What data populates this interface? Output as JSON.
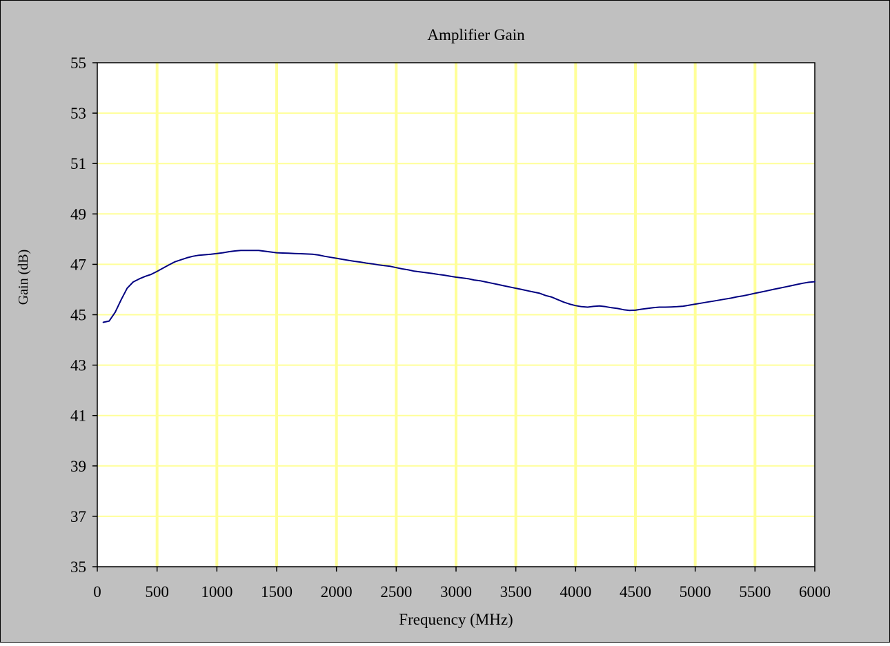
{
  "chart_data": {
    "type": "line",
    "title": "Amplifier Gain",
    "xlabel": "Frequency (MHz)",
    "ylabel": "Gain (dB)",
    "xlim": [
      0,
      6000
    ],
    "ylim": [
      35,
      55
    ],
    "xticks": [
      0,
      500,
      1000,
      1500,
      2000,
      2500,
      3000,
      3500,
      4000,
      4500,
      5000,
      5500,
      6000
    ],
    "yticks": [
      35,
      37,
      39,
      41,
      43,
      45,
      47,
      49,
      51,
      53,
      55
    ],
    "grid": true,
    "legend": "none",
    "colors": {
      "background": "#c0c0c0",
      "plot_area": "#ffffff",
      "grid": "#ffff99",
      "line": "#000080",
      "axis": "#000000"
    },
    "series": [
      {
        "x": [
          50,
          100,
          150,
          200,
          250,
          300,
          350,
          400,
          450,
          500,
          550,
          600,
          650,
          700,
          750,
          800,
          850,
          900,
          950,
          1000,
          1050,
          1100,
          1150,
          1200,
          1250,
          1300,
          1350,
          1400,
          1450,
          1500,
          1550,
          1600,
          1650,
          1700,
          1750,
          1800,
          1850,
          1900,
          1950,
          2000,
          2050,
          2100,
          2150,
          2200,
          2250,
          2300,
          2350,
          2400,
          2450,
          2500,
          2550,
          2600,
          2650,
          2700,
          2750,
          2800,
          2850,
          2900,
          2950,
          3000,
          3050,
          3100,
          3150,
          3200,
          3250,
          3300,
          3350,
          3400,
          3450,
          3500,
          3550,
          3600,
          3650,
          3700,
          3750,
          3800,
          3850,
          3900,
          3950,
          4000,
          4050,
          4100,
          4150,
          4200,
          4250,
          4300,
          4350,
          4400,
          4450,
          4500,
          4550,
          4600,
          4650,
          4700,
          4750,
          4800,
          4850,
          4900,
          4950,
          5000,
          5050,
          5100,
          5150,
          5200,
          5250,
          5300,
          5350,
          5400,
          5450,
          5500,
          5550,
          5600,
          5650,
          5700,
          5750,
          5800,
          5850,
          5900,
          5950,
          6000
        ],
        "values": [
          44.7,
          44.75,
          45.1,
          45.6,
          46.05,
          46.3,
          46.42,
          46.52,
          46.6,
          46.72,
          46.85,
          46.98,
          47.1,
          47.18,
          47.26,
          47.32,
          47.36,
          47.38,
          47.4,
          47.43,
          47.46,
          47.5,
          47.53,
          47.55,
          47.55,
          47.55,
          47.55,
          47.52,
          47.49,
          47.46,
          47.45,
          47.44,
          47.43,
          47.42,
          47.41,
          47.4,
          47.37,
          47.32,
          47.28,
          47.24,
          47.2,
          47.16,
          47.12,
          47.09,
          47.05,
          47.02,
          46.98,
          46.95,
          46.92,
          46.87,
          46.82,
          46.78,
          46.73,
          46.7,
          46.67,
          46.64,
          46.6,
          46.57,
          46.53,
          46.49,
          46.46,
          46.43,
          46.38,
          46.35,
          46.3,
          46.25,
          46.2,
          46.15,
          46.1,
          46.05,
          46.0,
          45.95,
          45.9,
          45.85,
          45.76,
          45.7,
          45.6,
          45.5,
          45.42,
          45.36,
          45.32,
          45.3,
          45.33,
          45.35,
          45.32,
          45.28,
          45.25,
          45.2,
          45.17,
          45.18,
          45.22,
          45.25,
          45.28,
          45.3,
          45.3,
          45.31,
          45.32,
          45.34,
          45.38,
          45.42,
          45.46,
          45.5,
          45.54,
          45.58,
          45.62,
          45.66,
          45.71,
          45.75,
          45.8,
          45.85,
          45.9,
          45.95,
          46.0,
          46.05,
          46.1,
          46.15,
          46.2,
          46.25,
          46.29,
          46.31
        ]
      }
    ]
  }
}
